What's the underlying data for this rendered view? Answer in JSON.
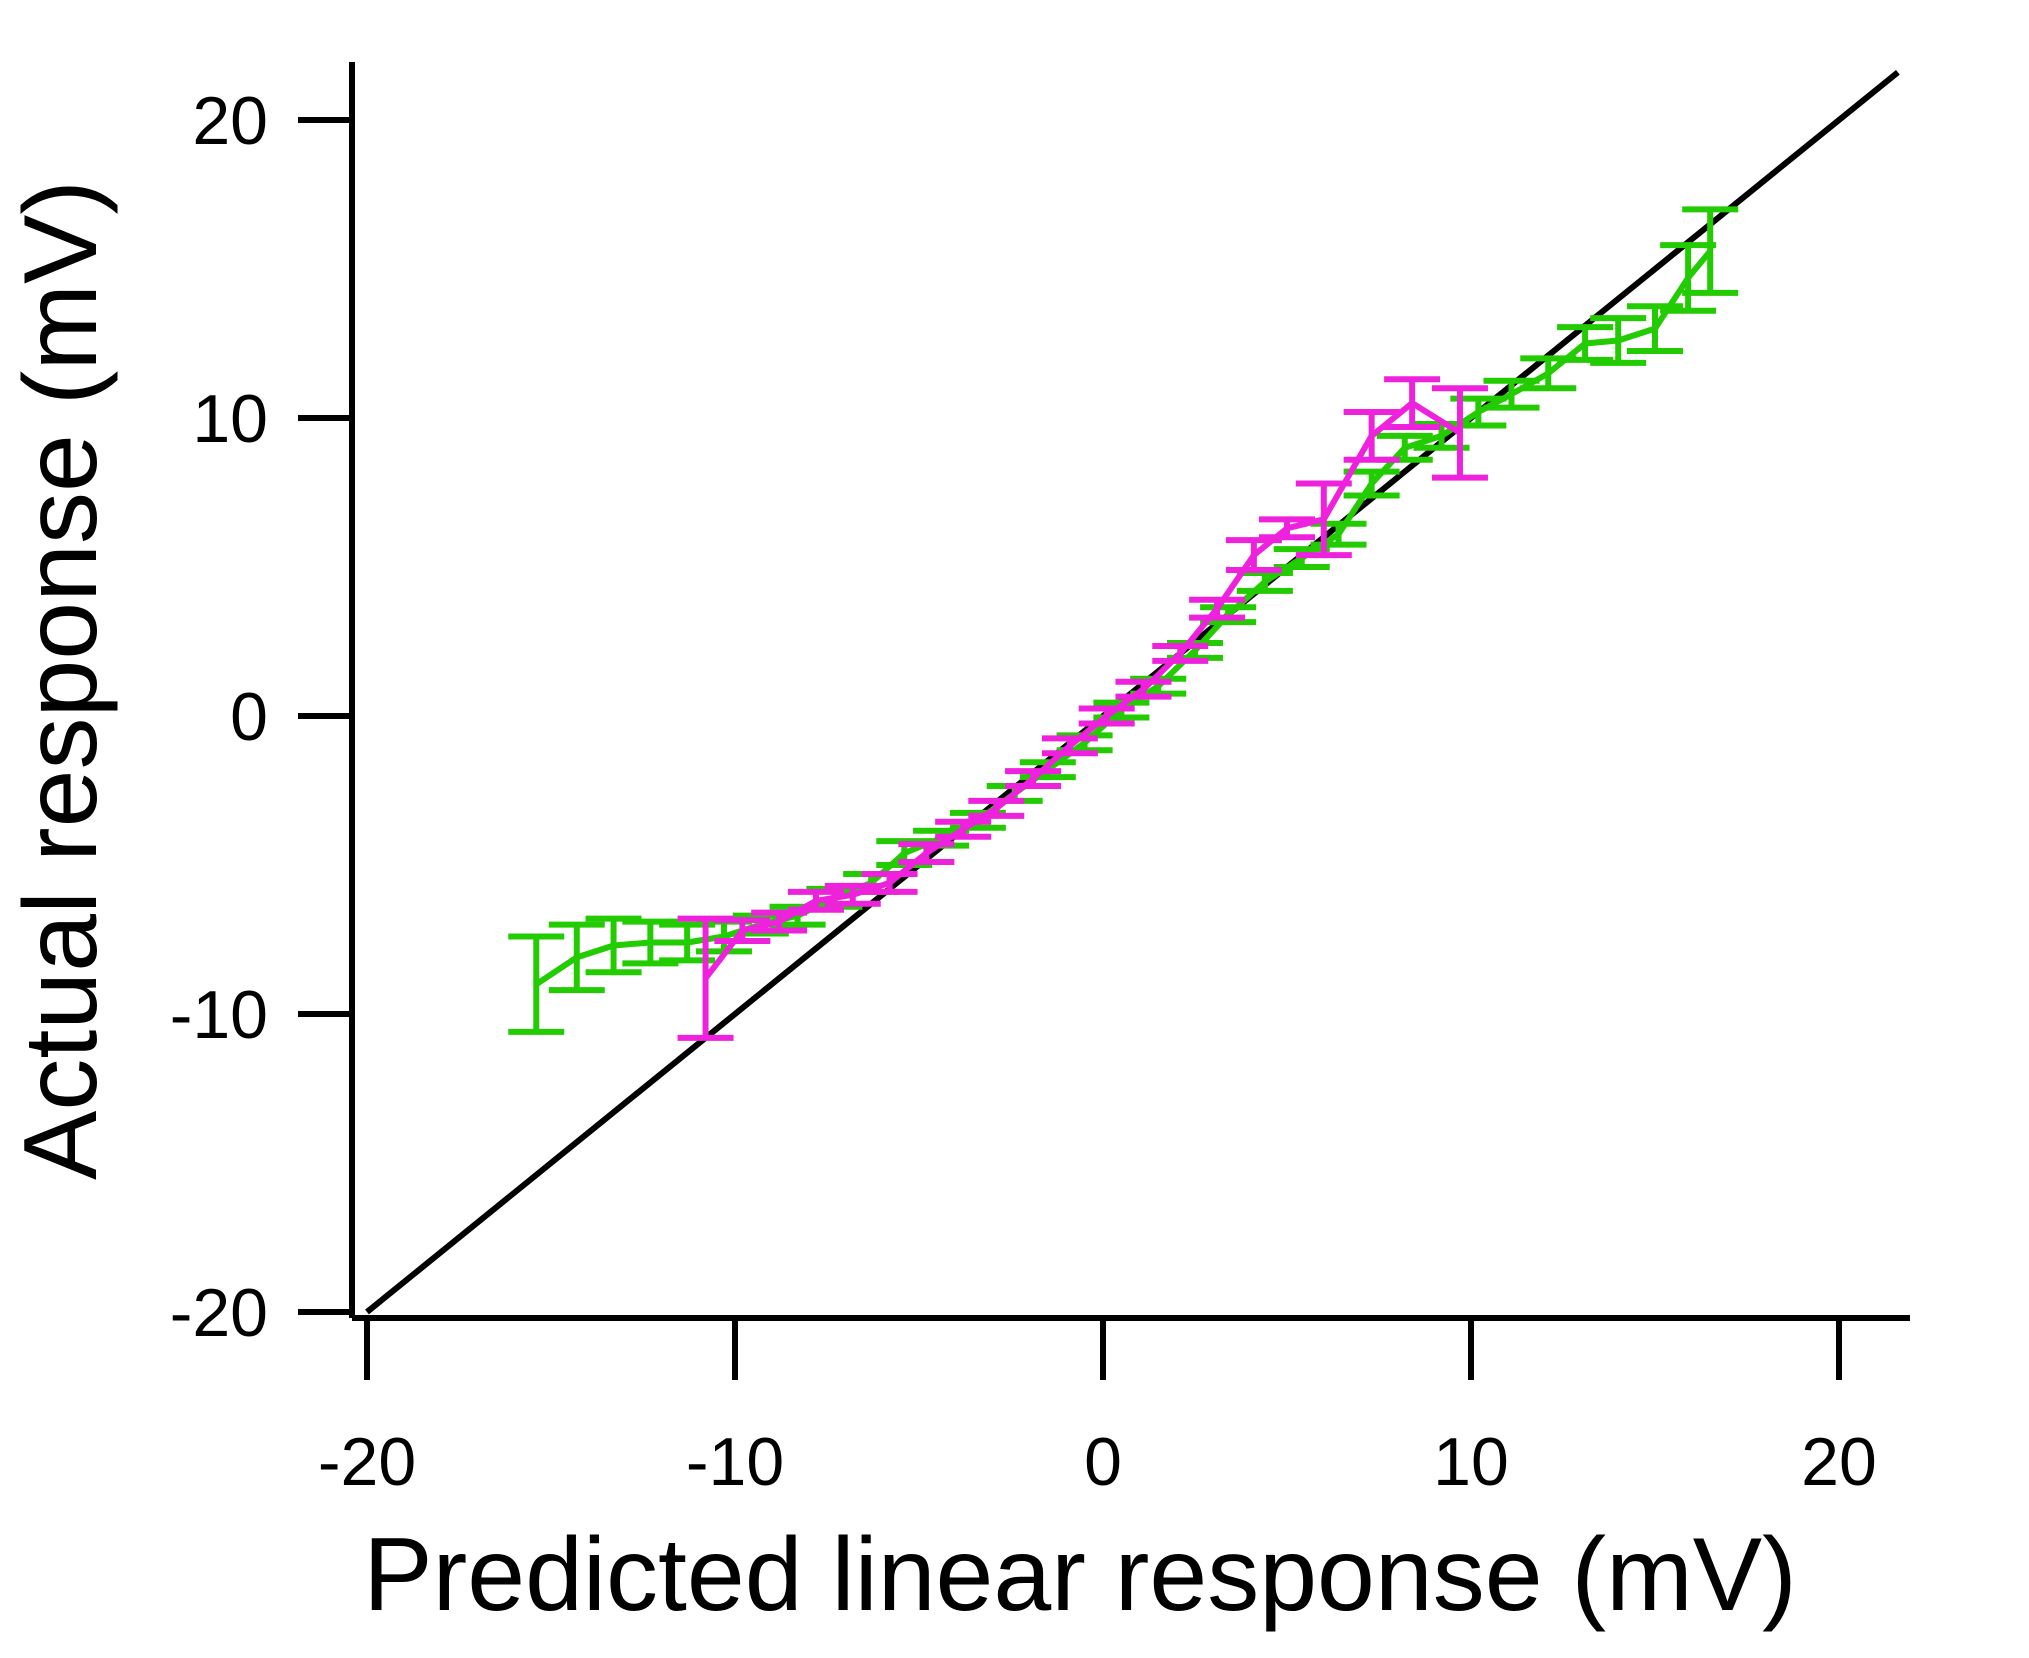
{
  "chart_data": {
    "type": "line",
    "title": "",
    "xlabel": "Predicted linear response (mV)",
    "ylabel": "Actual response (mV)",
    "xlim": [
      -20,
      22
    ],
    "ylim": [
      -20,
      22
    ],
    "xticks": [
      -20,
      -10,
      0,
      10,
      20
    ],
    "yticks": [
      -20,
      -10,
      0,
      10,
      20
    ],
    "grid": false,
    "legend": "none",
    "reference_line": {
      "x": [
        -20,
        21.6
      ],
      "y": [
        -20,
        21.6
      ],
      "color": "#000000"
    },
    "series": [
      {
        "color": "#22cc00",
        "points": [
          {
            "x": -15.4,
            "y": -9.0,
            "err": 1.6
          },
          {
            "x": -14.3,
            "y": -8.1,
            "err": 1.1
          },
          {
            "x": -13.3,
            "y": -7.7,
            "err": 0.9
          },
          {
            "x": -12.3,
            "y": -7.6,
            "err": 0.7
          },
          {
            "x": -11.3,
            "y": -7.6,
            "err": 0.6
          },
          {
            "x": -10.3,
            "y": -7.4,
            "err": 0.5
          },
          {
            "x": -9.3,
            "y": -7.0,
            "err": 0.3
          },
          {
            "x": -8.3,
            "y": -6.7,
            "err": 0.3
          },
          {
            "x": -7.3,
            "y": -6.1,
            "err": 0.3
          },
          {
            "x": -6.3,
            "y": -5.6,
            "err": 0.3
          },
          {
            "x": -5.4,
            "y": -4.6,
            "err": 0.4
          },
          {
            "x": -4.4,
            "y": -4.1,
            "err": 0.25
          },
          {
            "x": -3.4,
            "y": -3.5,
            "err": 0.25
          },
          {
            "x": -2.4,
            "y": -2.6,
            "err": 0.25
          },
          {
            "x": -1.5,
            "y": -1.8,
            "err": 0.25
          },
          {
            "x": -0.5,
            "y": -0.9,
            "err": 0.25
          },
          {
            "x": 0.5,
            "y": 0.2,
            "err": 0.25
          },
          {
            "x": 1.5,
            "y": 1.0,
            "err": 0.25
          },
          {
            "x": 2.5,
            "y": 2.2,
            "err": 0.25
          },
          {
            "x": 3.4,
            "y": 3.4,
            "err": 0.25
          },
          {
            "x": 4.4,
            "y": 4.5,
            "err": 0.3
          },
          {
            "x": 5.4,
            "y": 5.3,
            "err": 0.3
          },
          {
            "x": 6.4,
            "y": 6.1,
            "err": 0.35
          },
          {
            "x": 7.3,
            "y": 7.8,
            "err": 0.4
          },
          {
            "x": 8.2,
            "y": 9.0,
            "err": 0.4
          },
          {
            "x": 9.2,
            "y": 9.4,
            "err": 0.4
          },
          {
            "x": 10.2,
            "y": 10.2,
            "err": 0.45
          },
          {
            "x": 11.1,
            "y": 10.8,
            "err": 0.45
          },
          {
            "x": 12.1,
            "y": 11.5,
            "err": 0.5
          },
          {
            "x": 13.1,
            "y": 12.5,
            "err": 0.55
          },
          {
            "x": 14.0,
            "y": 12.6,
            "err": 0.75
          },
          {
            "x": 15.0,
            "y": 13.0,
            "err": 0.75
          },
          {
            "x": 15.9,
            "y": 14.7,
            "err": 1.1
          },
          {
            "x": 16.5,
            "y": 15.6,
            "err": 1.4
          }
        ]
      },
      {
        "color": "#ee22dd",
        "points": [
          {
            "x": -10.8,
            "y": -8.8,
            "err": 2.0
          },
          {
            "x": -9.8,
            "y": -7.2,
            "err": 0.35
          },
          {
            "x": -8.8,
            "y": -6.9,
            "err": 0.3
          },
          {
            "x": -7.8,
            "y": -6.2,
            "err": 0.3
          },
          {
            "x": -6.8,
            "y": -6.0,
            "err": 0.3
          },
          {
            "x": -5.8,
            "y": -5.6,
            "err": 0.3
          },
          {
            "x": -4.8,
            "y": -4.6,
            "err": 0.3
          },
          {
            "x": -3.8,
            "y": -3.8,
            "err": 0.25
          },
          {
            "x": -2.9,
            "y": -3.1,
            "err": 0.25
          },
          {
            "x": -1.9,
            "y": -2.1,
            "err": 0.25
          },
          {
            "x": -0.9,
            "y": -1.0,
            "err": 0.25
          },
          {
            "x": 0.1,
            "y": 0.0,
            "err": 0.25
          },
          {
            "x": 1.1,
            "y": 0.9,
            "err": 0.25
          },
          {
            "x": 2.1,
            "y": 2.1,
            "err": 0.25
          },
          {
            "x": 3.1,
            "y": 3.6,
            "err": 0.3
          },
          {
            "x": 4.1,
            "y": 5.4,
            "err": 0.5
          },
          {
            "x": 5.0,
            "y": 6.3,
            "err": 0.3
          },
          {
            "x": 6.0,
            "y": 6.6,
            "err": 1.2
          },
          {
            "x": 7.3,
            "y": 9.4,
            "err": 0.8
          },
          {
            "x": 8.4,
            "y": 10.5,
            "err": 0.8
          },
          {
            "x": 9.7,
            "y": 9.5,
            "err": 1.5
          }
        ]
      }
    ]
  }
}
